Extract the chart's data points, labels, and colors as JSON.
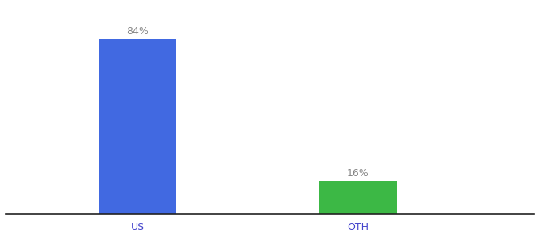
{
  "categories": [
    "US",
    "OTH"
  ],
  "values": [
    84,
    16
  ],
  "bar_colors": [
    "#4169e1",
    "#3cb845"
  ],
  "label_texts": [
    "84%",
    "16%"
  ],
  "ylim": [
    0,
    100
  ],
  "background_color": "#ffffff",
  "label_fontsize": 9,
  "tick_fontsize": 9,
  "bar_width": 0.35,
  "x_positions": [
    1,
    2
  ],
  "xlim": [
    0.4,
    2.8
  ]
}
